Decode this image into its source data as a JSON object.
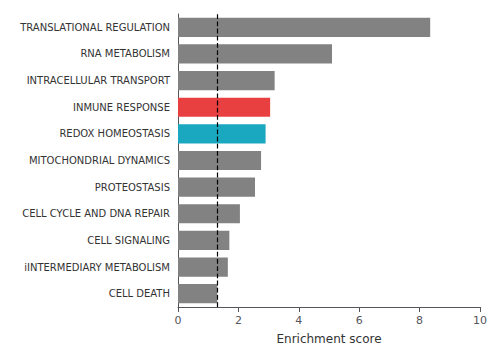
{
  "chart_data": {
    "type": "bar",
    "orientation": "horizontal",
    "categories": [
      "CELL DEATH",
      "iINTERMEDIARY METABOLISM",
      "CELL SIGNALING",
      "CELL CYCLE AND DNA REPAIR",
      "PROTEOSTASIS",
      "MITOCHONDRIAL DYNAMICS",
      "REDOX HOMEOSTASIS",
      "INMUNE RESPONSE",
      "INTRACELLULAR TRANSPORT",
      "RNA METABOLISM",
      "TRANSLATIONAL REGULATION"
    ],
    "values": [
      1.3,
      1.65,
      1.7,
      2.05,
      2.55,
      2.75,
      2.9,
      3.05,
      3.2,
      5.1,
      8.35
    ],
    "colors": [
      "#828282",
      "#828282",
      "#828282",
      "#828282",
      "#828282",
      "#828282",
      "#1AA7C0",
      "#E84040",
      "#828282",
      "#828282",
      "#828282"
    ],
    "xlabel": "Enrichment score",
    "xlim": [
      0,
      10
    ],
    "xticks": [
      0,
      2,
      4,
      6,
      8,
      10
    ],
    "reference_line_x": 1.3,
    "grid": false
  }
}
